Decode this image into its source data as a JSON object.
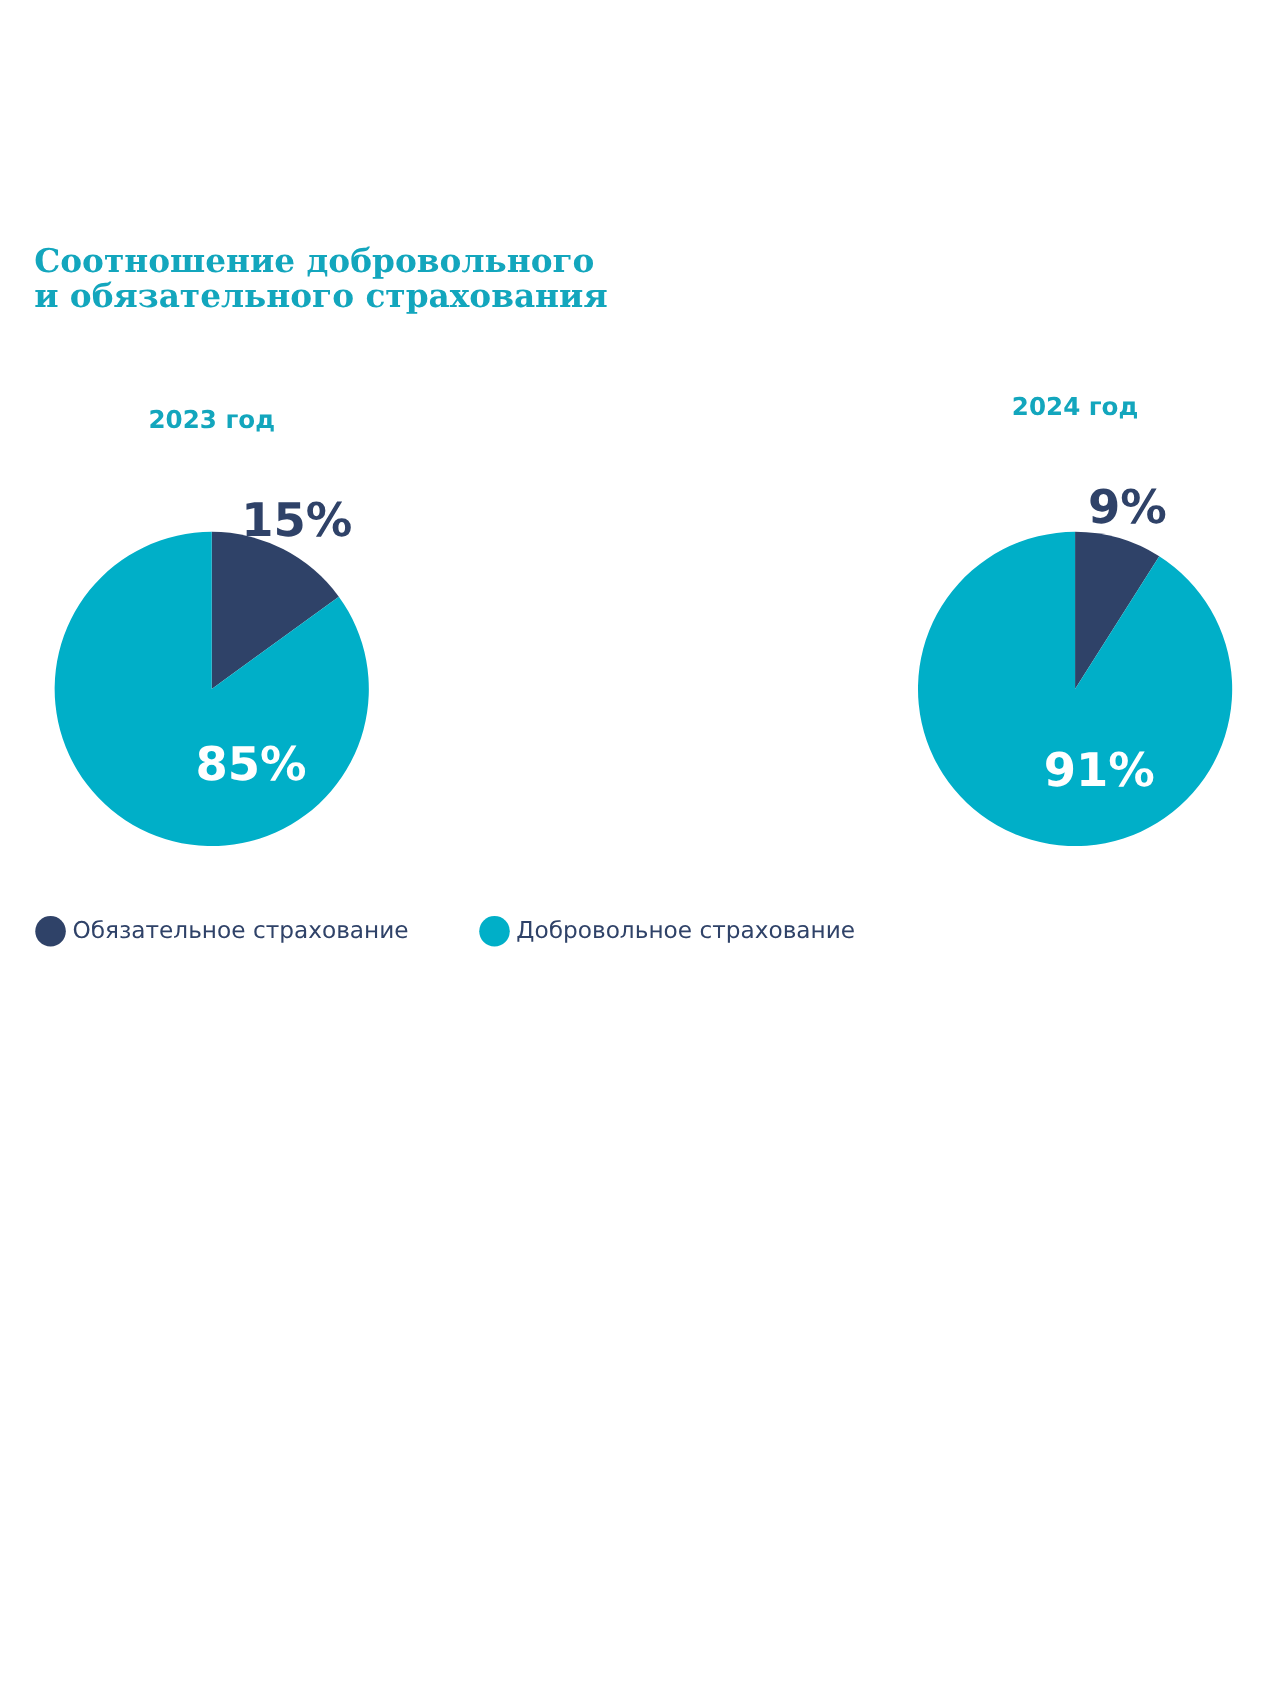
{
  "chart_data": [
    {
      "type": "pie",
      "title": "Соотношение добровольного\nи обязательного страхования",
      "subtitle": "2023 год",
      "categories": [
        "Обязательное страхование",
        "Добровольное страхование"
      ],
      "values": [
        15,
        85
      ],
      "colors": [
        "#2f4268",
        "#00afc8"
      ],
      "value_labels": [
        "15%",
        "85%"
      ],
      "legend": "bottom"
    },
    {
      "type": "pie",
      "subtitle": "2024 год",
      "categories": [
        null,
        null
      ],
      "values": [
        9,
        91
      ],
      "colors": [
        "#2f4268",
        "#00afc8"
      ],
      "value_labels": [
        "9%",
        "91%"
      ]
    }
  ]
}
